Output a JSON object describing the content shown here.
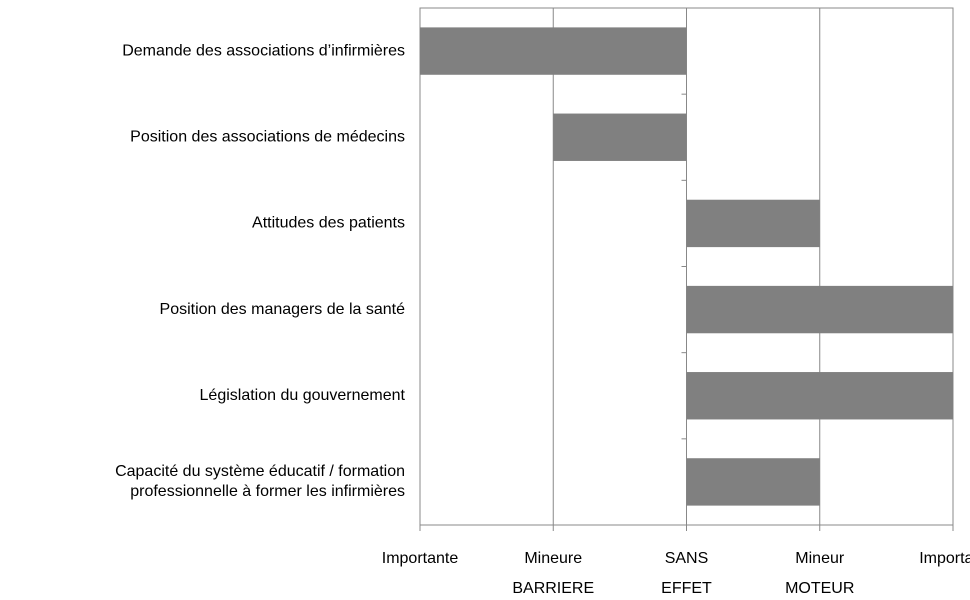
{
  "chart_data": {
    "type": "bar",
    "orientation": "horizontal",
    "categories": [
      "Demande des associations d’infirmières",
      "Position des associations de médecins",
      "Attitudes des patients",
      "Position des managers de la santé",
      "Législation du gouvernement",
      "Capacité du système éducatif / formation\nprofessionnelle à former les infirmières"
    ],
    "values": [
      -2,
      -1,
      1,
      2,
      2,
      1
    ],
    "color": "#808080",
    "xlim": [
      -2,
      2
    ],
    "xticks": [
      {
        "value": -2,
        "label": "Importante"
      },
      {
        "value": -1,
        "label": "Mineure"
      },
      {
        "value": 0,
        "label": "SANS"
      },
      {
        "value": 1,
        "label": "Mineur"
      },
      {
        "value": 2,
        "label": "Important"
      }
    ],
    "x_group_labels": [
      "BARRIERE",
      "EFFET",
      "MOTEUR"
    ],
    "grid": true
  }
}
